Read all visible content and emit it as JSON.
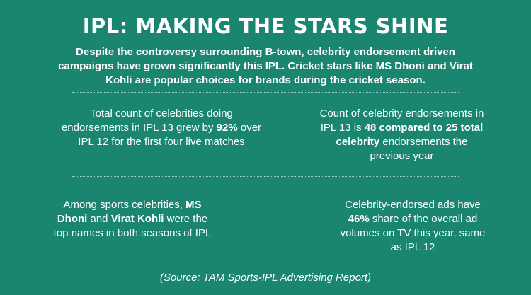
{
  "title": "IPL: MAKING THE STARS SHINE",
  "intro": "Despite the controversy surrounding B-town, celebrity endorsement driven campaigns have grown significantly this IPL. Cricket stars like MS Dhoni and Virat Kohli are popular choices for brands during the cricket season.",
  "stats": {
    "top_left": {
      "pre": "Total count of celebrities doing endorsements in IPL 13 grew by ",
      "highlight": "92%",
      "post": " over IPL 12 for the first four live matches"
    },
    "top_right": {
      "pre": "Count of celebrity endorsements in IPL 13 is ",
      "highlight": "48 compared to 25 total celebrity",
      "post": " endorsements the previous year"
    },
    "bottom_left": {
      "pre": "Among sports celebrities, ",
      "highlight1": "MS Dhoni",
      "mid": " and ",
      "highlight2": "Virat Kohli",
      "post": " were the top names in both seasons of IPL"
    },
    "bottom_right": {
      "pre": "Celebrity-endorsed ads have ",
      "highlight": "46%",
      "post": " share of the overall ad volumes on TV this year, same as IPL 12"
    }
  },
  "source": "(Source: TAM Sports-IPL Advertising Report)"
}
